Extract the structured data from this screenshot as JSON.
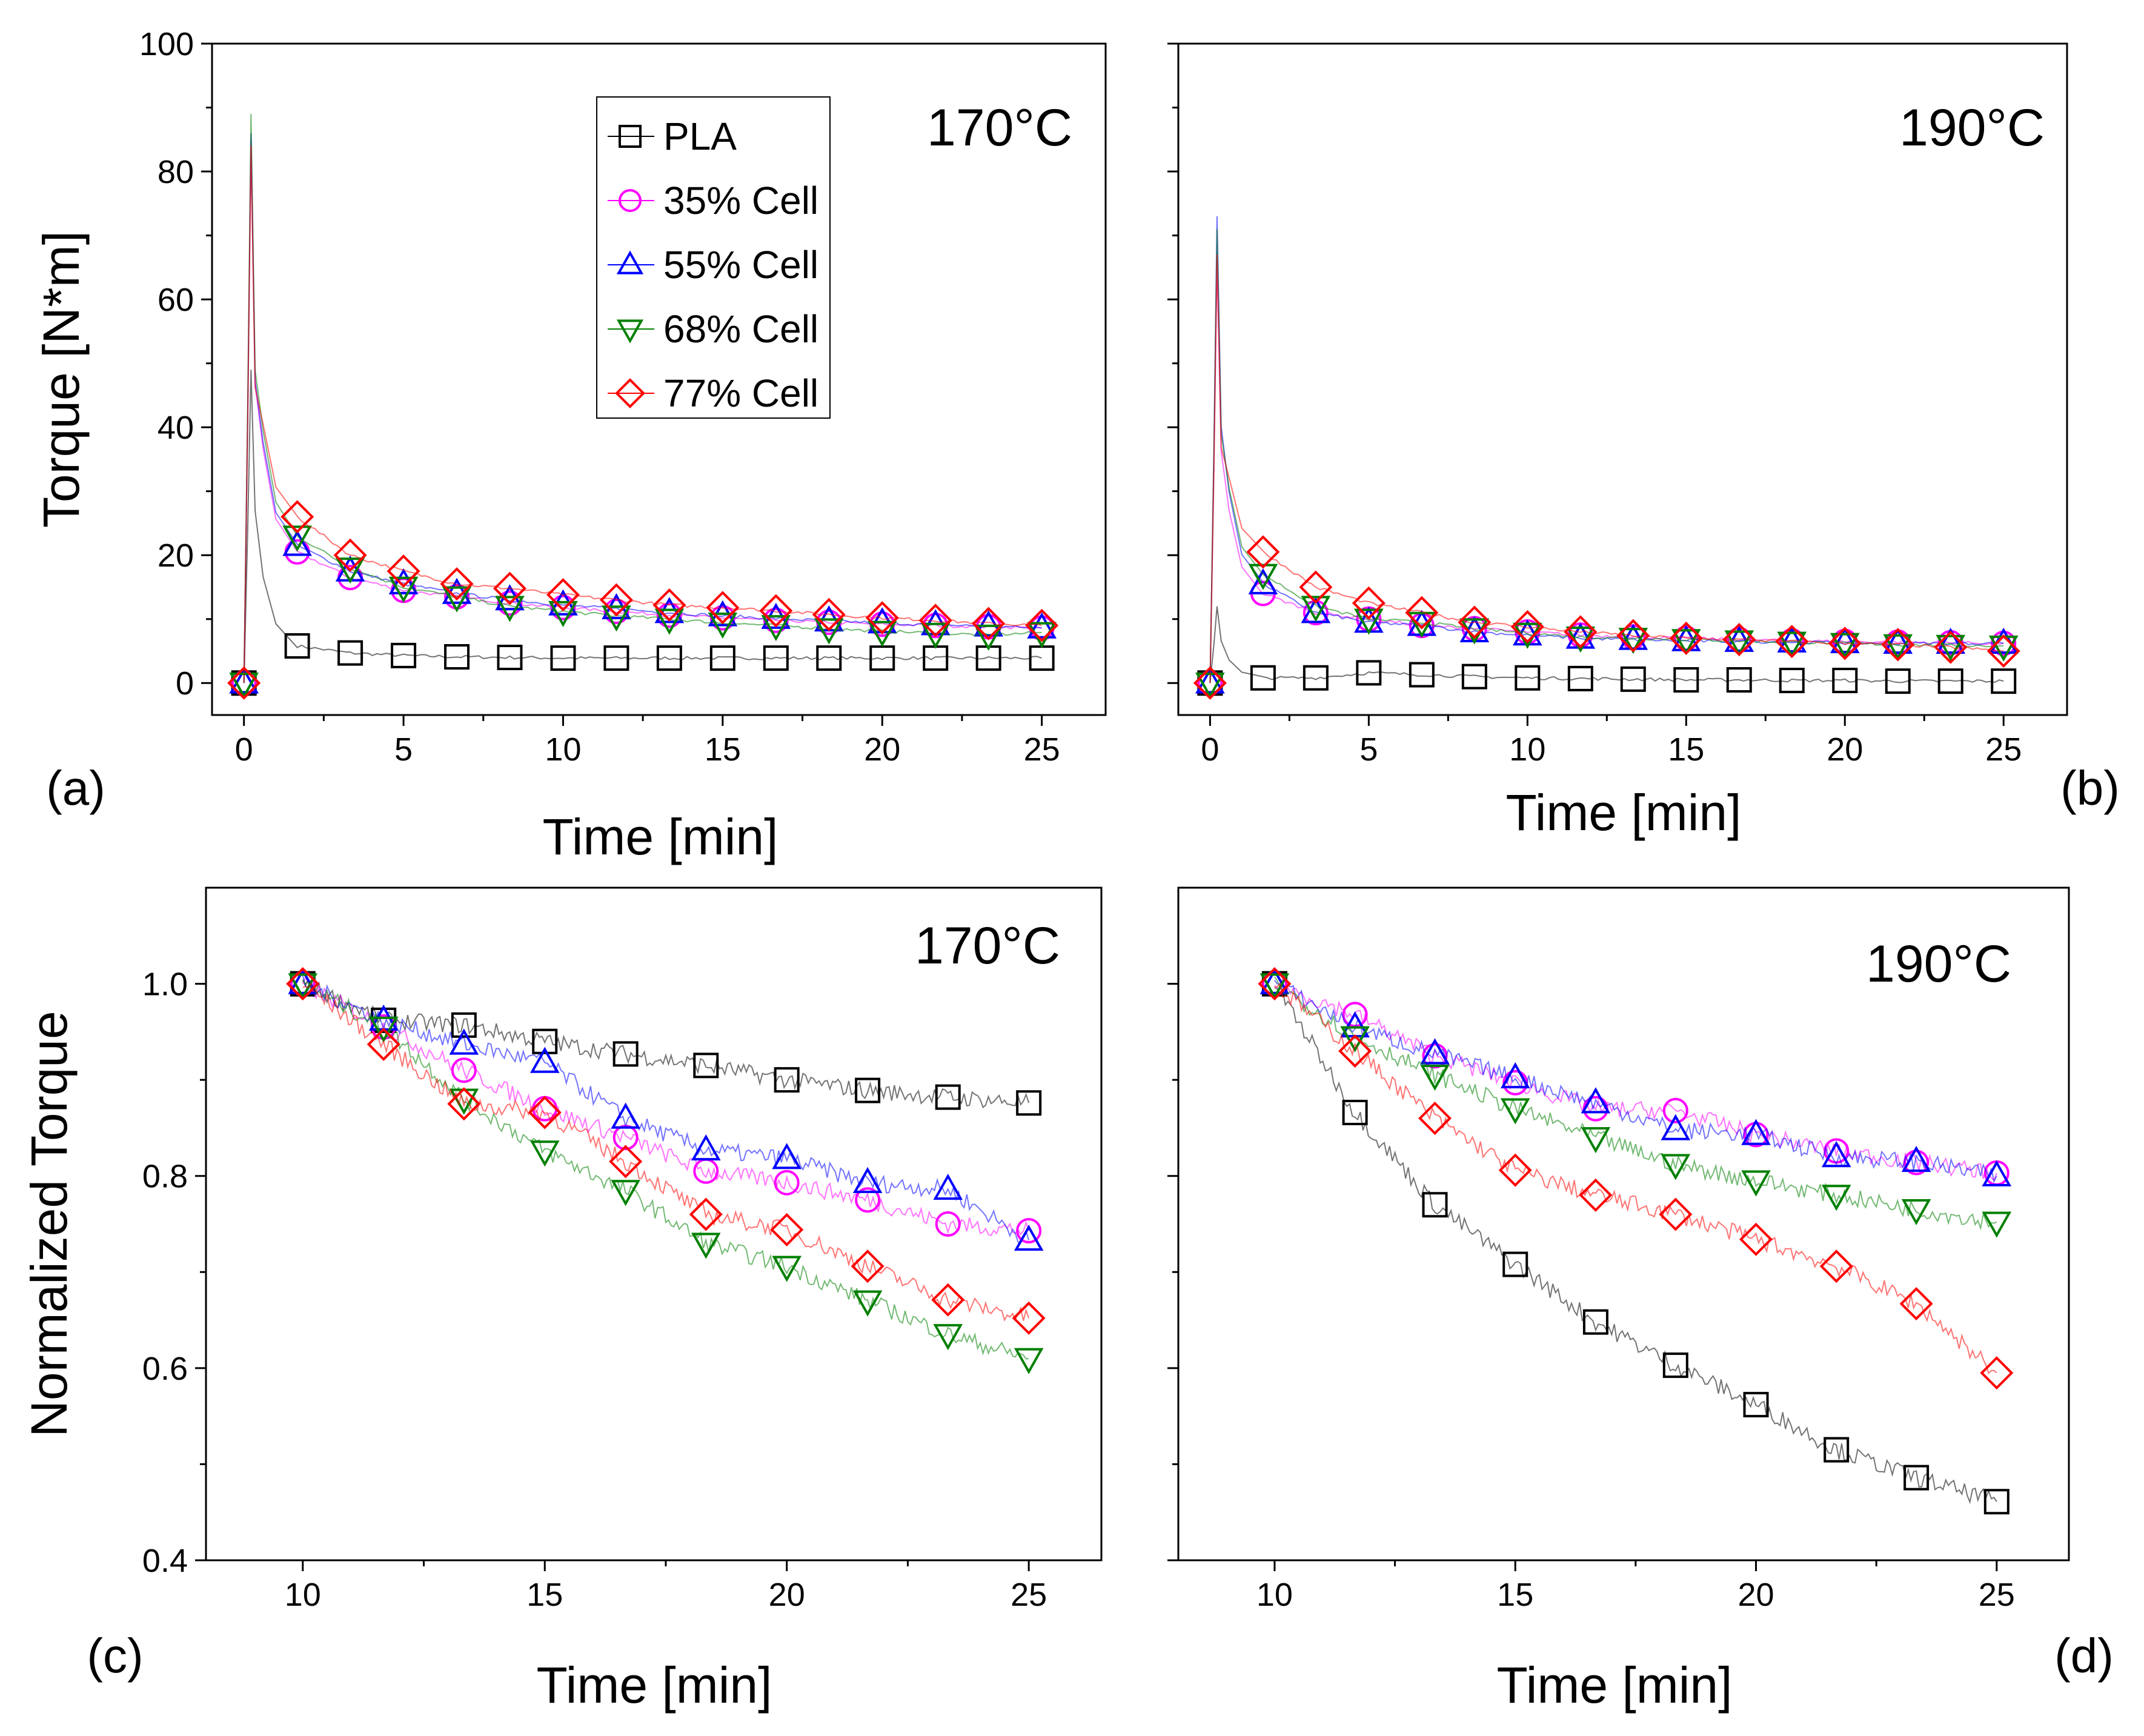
{
  "series_meta": [
    {
      "name": "PLA",
      "color": "#000000",
      "marker": "square"
    },
    {
      "name": "35% Cell",
      "color": "#ff00ff",
      "marker": "circle"
    },
    {
      "name": "55% Cell",
      "color": "#0000ff",
      "marker": "triangle-up"
    },
    {
      "name": "68% Cell",
      "color": "#008000",
      "marker": "triangle-down"
    },
    {
      "name": "77% Cell",
      "color": "#ff0000",
      "marker": "diamond"
    }
  ],
  "chart_data": [
    {
      "id": "a",
      "type": "line",
      "panel_label": "(a)",
      "annotation": "170°C",
      "xlabel": "Time [min]",
      "ylabel": "Torque [N*m]",
      "xlim": [
        -1,
        27
      ],
      "ylim": [
        -5,
        100
      ],
      "xticks": [
        0,
        5,
        10,
        15,
        20,
        25
      ],
      "yticks": [
        0,
        20,
        40,
        60,
        80,
        100
      ],
      "legend": "top-center",
      "grid": false,
      "x": [
        0,
        1.67,
        3.33,
        5,
        6.67,
        8.33,
        10,
        11.67,
        13.33,
        15,
        16.67,
        18.33,
        20,
        21.67,
        23.33,
        25
      ],
      "peaks": [
        49,
        85,
        86,
        89,
        84
      ],
      "series": [
        {
          "name": "PLA",
          "values": [
            0,
            5.8,
            4.7,
            4.3,
            4.1,
            4.0,
            3.9,
            3.9,
            3.9,
            3.9,
            3.9,
            3.9,
            3.9,
            3.9,
            3.9,
            3.9
          ]
        },
        {
          "name": "35% Cell",
          "values": [
            0,
            20.5,
            16.5,
            14.5,
            13.5,
            12.5,
            11.8,
            11.2,
            10.6,
            10.2,
            9.8,
            9.5,
            9.2,
            9.0,
            8.8,
            8.6
          ]
        },
        {
          "name": "55% Cell",
          "values": [
            0,
            21.5,
            17.5,
            15.5,
            14,
            13,
            12.2,
            11.6,
            11.0,
            10.5,
            10.1,
            9.7,
            9.4,
            9.1,
            8.9,
            8.6
          ]
        },
        {
          "name": "68% Cell",
          "values": [
            0,
            23,
            18,
            15,
            13.5,
            12,
            11.2,
            10.5,
            10.0,
            9.4,
            9.0,
            8.5,
            8.1,
            7.8,
            7.5,
            7.9
          ]
        },
        {
          "name": "77% Cell",
          "values": [
            0,
            26,
            20,
            17.5,
            15.5,
            14.8,
            13.8,
            13.0,
            12.2,
            11.8,
            11.3,
            10.7,
            10.2,
            9.8,
            9.3,
            9.0
          ]
        }
      ]
    },
    {
      "id": "b",
      "type": "line",
      "panel_label": "(b)",
      "annotation": "190°C",
      "xlabel": "Time [min]",
      "ylabel": "",
      "xlim": [
        -1,
        27
      ],
      "ylim": [
        -5,
        100
      ],
      "xticks": [
        0,
        5,
        10,
        15,
        20,
        25
      ],
      "yticks": [],
      "legend": "none",
      "grid": false,
      "x": [
        0,
        1.67,
        3.33,
        5,
        6.67,
        8.33,
        10,
        11.67,
        13.33,
        15,
        16.67,
        18.33,
        20,
        21.67,
        23.33,
        25
      ],
      "peaks": [
        12,
        66,
        73,
        71,
        67
      ],
      "series": [
        {
          "name": "PLA",
          "values": [
            0,
            0.8,
            0.8,
            1.6,
            1.3,
            1.0,
            0.8,
            0.7,
            0.6,
            0.5,
            0.5,
            0.4,
            0.4,
            0.3,
            0.3,
            0.3
          ]
        },
        {
          "name": "35% Cell",
          "values": [
            0,
            14,
            11,
            10,
            9,
            8.5,
            8,
            7.5,
            7.2,
            7.0,
            6.8,
            6.6,
            6.5,
            6.4,
            6.3,
            6.2
          ]
        },
        {
          "name": "55% Cell",
          "values": [
            0,
            15.5,
            11,
            9.5,
            9,
            8,
            7.5,
            7.0,
            6.8,
            6.6,
            6.5,
            6.4,
            6.3,
            6.2,
            6.2,
            6.2
          ]
        },
        {
          "name": "68% Cell",
          "values": [
            0,
            17,
            12,
            10,
            9.5,
            8.5,
            7.8,
            7.2,
            7.0,
            6.8,
            6.6,
            6.4,
            6.2,
            6.0,
            5.9,
            5.8
          ]
        },
        {
          "name": "77% Cell",
          "values": [
            0,
            20.5,
            15,
            12.5,
            11,
            9.5,
            8.8,
            8.0,
            7.4,
            7.0,
            6.8,
            6.5,
            6.2,
            6.0,
            5.6,
            5.0
          ]
        }
      ]
    },
    {
      "id": "c",
      "type": "line",
      "panel_label": "(c)",
      "annotation": "170°C",
      "xlabel": "Time [min]",
      "ylabel": "Normalized Torque",
      "xlim": [
        8,
        26.5
      ],
      "ylim": [
        0.4,
        1.1
      ],
      "xticks": [
        10,
        15,
        20,
        25
      ],
      "yticks": [
        0.4,
        0.6,
        0.8,
        1.0
      ],
      "ytick_labels": [
        "0.4",
        "0.6",
        "0.8",
        "1.0"
      ],
      "legend": "none",
      "grid": false,
      "x": [
        10,
        11.67,
        13.33,
        15,
        16.67,
        18.33,
        20,
        21.67,
        23.33,
        25
      ],
      "series": [
        {
          "name": "PLA",
          "values": [
            1.0,
            0.962,
            0.957,
            0.94,
            0.927,
            0.915,
            0.9,
            0.889,
            0.882,
            0.876
          ]
        },
        {
          "name": "35% Cell",
          "values": [
            1.0,
            0.955,
            0.91,
            0.87,
            0.84,
            0.805,
            0.793,
            0.775,
            0.75,
            0.743
          ]
        },
        {
          "name": "55% Cell",
          "values": [
            1.0,
            0.962,
            0.937,
            0.918,
            0.86,
            0.827,
            0.818,
            0.793,
            0.786,
            0.733
          ]
        },
        {
          "name": "68% Cell",
          "values": [
            1.0,
            0.955,
            0.88,
            0.826,
            0.785,
            0.73,
            0.706,
            0.67,
            0.635,
            0.61
          ]
        },
        {
          "name": "77% Cell",
          "values": [
            1.0,
            0.937,
            0.875,
            0.866,
            0.815,
            0.76,
            0.744,
            0.706,
            0.671,
            0.652
          ]
        }
      ]
    },
    {
      "id": "d",
      "type": "line",
      "panel_label": "(d)",
      "annotation": "190°C",
      "xlabel": "Time [min]",
      "ylabel": "",
      "xlim": [
        8,
        26.5
      ],
      "ylim": [
        0.4,
        1.1
      ],
      "xticks": [
        10,
        15,
        20,
        25
      ],
      "yticks": [],
      "legend": "none",
      "grid": false,
      "x": [
        10,
        11.67,
        13.33,
        15,
        16.67,
        18.33,
        20,
        21.67,
        23.33,
        25
      ],
      "series": [
        {
          "name": "PLA",
          "values": [
            1.0,
            0.866,
            0.77,
            0.708,
            0.648,
            0.603,
            0.562,
            0.515,
            0.486,
            0.461
          ]
        },
        {
          "name": "35% Cell",
          "values": [
            1.0,
            0.968,
            0.925,
            0.897,
            0.87,
            0.868,
            0.843,
            0.826,
            0.814,
            0.803
          ]
        },
        {
          "name": "55% Cell",
          "values": [
            1.0,
            0.955,
            0.927,
            0.902,
            0.876,
            0.848,
            0.843,
            0.82,
            0.815,
            0.8
          ]
        },
        {
          "name": "68% Cell",
          "values": [
            1.0,
            0.945,
            0.905,
            0.87,
            0.84,
            0.812,
            0.795,
            0.78,
            0.765,
            0.752
          ]
        },
        {
          "name": "77% Cell",
          "values": [
            1.0,
            0.93,
            0.86,
            0.806,
            0.78,
            0.76,
            0.734,
            0.706,
            0.667,
            0.595
          ]
        }
      ]
    }
  ]
}
